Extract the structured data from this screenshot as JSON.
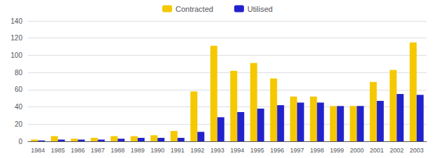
{
  "chart_data": {
    "type": "bar",
    "categories": [
      "1984",
      "1985",
      "1986",
      "1987",
      "1988",
      "1989",
      "1990",
      "1991",
      "1992",
      "1993",
      "1994",
      "1995",
      "1996",
      "1997",
      "1998",
      "1999",
      "2000",
      "2001",
      "2002",
      "2003"
    ],
    "series": [
      {
        "name": "Contracted",
        "color": "#F5C800",
        "values": [
          2,
          6,
          3,
          4,
          6,
          6,
          7,
          12,
          58,
          111,
          82,
          91,
          73,
          52,
          52,
          41,
          41,
          69,
          83,
          115
        ]
      },
      {
        "name": "Utilised",
        "color": "#2222CC",
        "values": [
          1,
          2,
          2,
          2,
          3,
          4,
          4,
          4,
          11,
          28,
          34,
          38,
          42,
          45,
          45,
          41,
          41,
          47,
          55,
          54
        ]
      }
    ],
    "ylim": [
      0,
      140
    ],
    "yticks": [
      0,
      20,
      40,
      60,
      80,
      100,
      120,
      140
    ],
    "grid": true,
    "legend": "top"
  }
}
